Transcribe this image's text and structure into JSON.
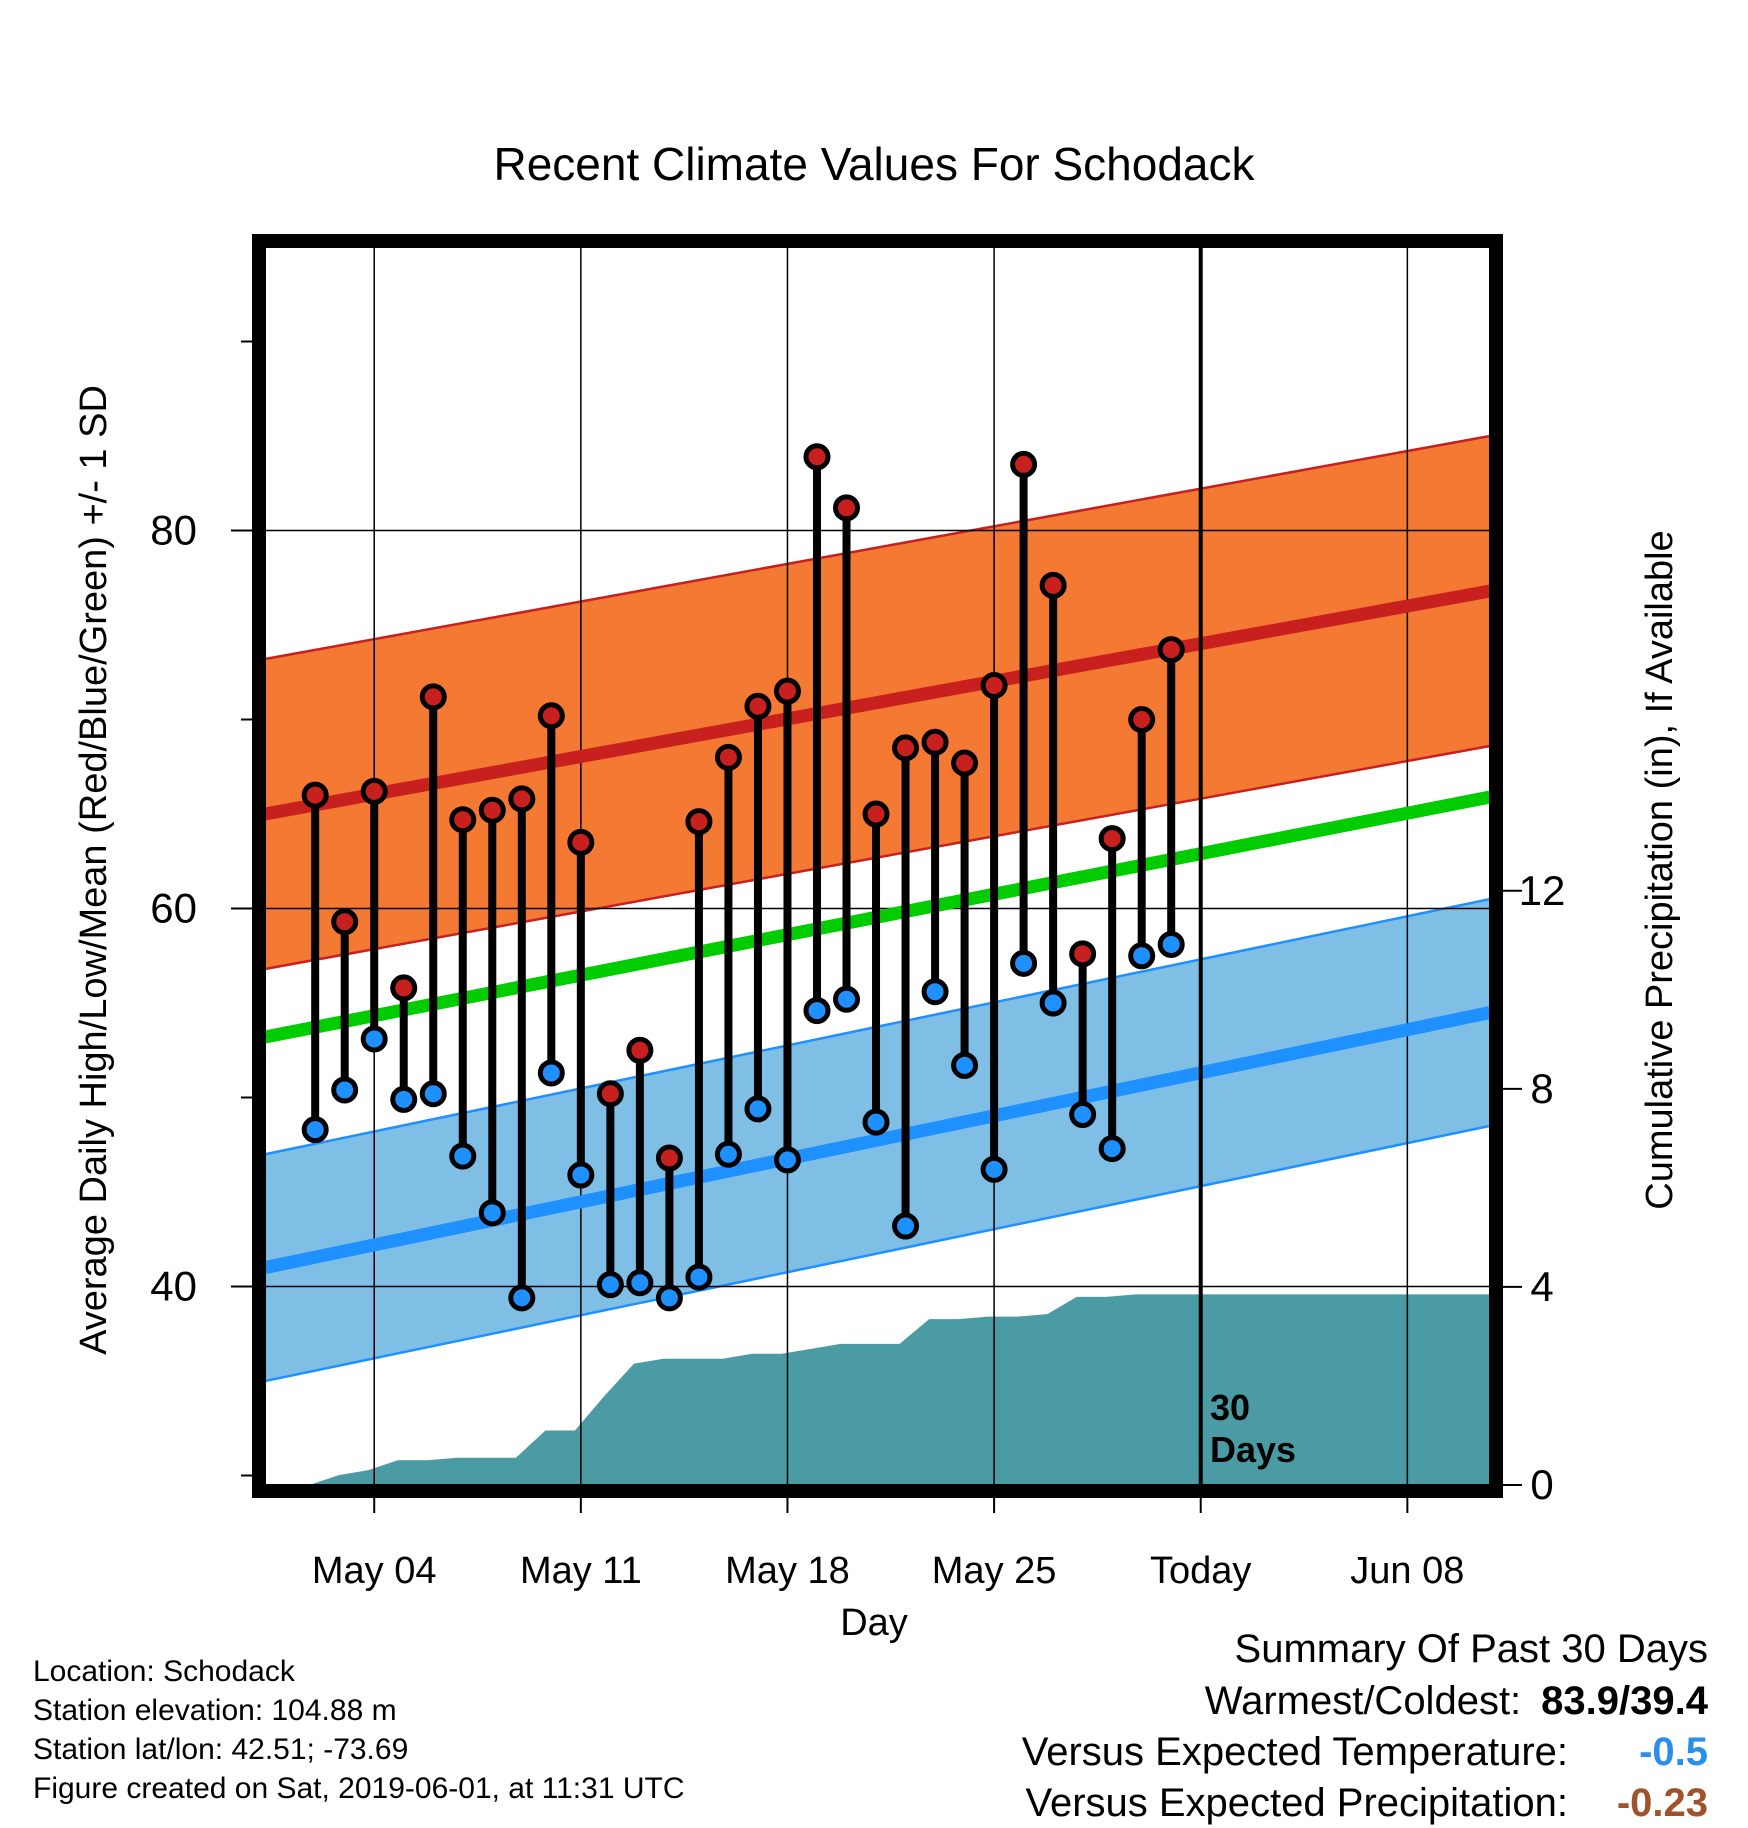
{
  "chart_data": {
    "type": "line",
    "title": "Recent Climate Values For Schodack",
    "xlabel": "Day",
    "ylabel_left": "Average Daily High/Low/Mean (Red/Blue/Green) +/- 1 SD",
    "ylabel_right": "Cumulative Precipitation (in), If Available",
    "x_tick_labels": [
      "May 04",
      "May 11",
      "May 18",
      "May 25",
      "Today",
      "Jun 08"
    ],
    "y_left_ticks": [
      "40",
      "60",
      "80"
    ],
    "y_left_range": [
      29.5,
      95
    ],
    "y_right_ticks": [
      "0",
      "4",
      "8",
      "12"
    ],
    "y_right_range": [
      0,
      25
    ],
    "x_range_days": [
      -31.7,
      9.8
    ],
    "today_marker_label": [
      "30",
      "Days"
    ],
    "dates": [
      "May 02",
      "May 03",
      "May 04",
      "May 05",
      "May 06",
      "May 07",
      "May 08",
      "May 09",
      "May 10",
      "May 11",
      "May 12",
      "May 13",
      "May 14",
      "May 15",
      "May 16",
      "May 17",
      "May 18",
      "May 19",
      "May 20",
      "May 21",
      "May 22",
      "May 23",
      "May 24",
      "May 25",
      "May 26",
      "May 27",
      "May 28",
      "May 29",
      "May 30",
      "May 31"
    ],
    "series": [
      {
        "name": "High",
        "color": "#C8201F",
        "values": [
          66.0,
          59.3,
          66.2,
          55.8,
          71.2,
          64.7,
          65.2,
          65.8,
          70.2,
          63.5,
          50.2,
          52.5,
          46.8,
          64.6,
          68.0,
          70.7,
          71.5,
          83.9,
          81.2,
          65.0,
          68.5,
          68.8,
          67.7,
          71.8,
          83.5,
          77.1,
          57.6,
          63.7,
          70.0,
          73.7
        ]
      },
      {
        "name": "Low",
        "color": "#1E90FF",
        "values": [
          48.3,
          50.4,
          53.1,
          49.9,
          50.2,
          46.9,
          43.9,
          39.4,
          51.3,
          45.9,
          40.1,
          40.2,
          39.4,
          40.5,
          47.0,
          49.4,
          46.7,
          54.6,
          55.2,
          48.7,
          43.2,
          55.6,
          51.7,
          46.2,
          57.1,
          55.0,
          49.1,
          47.3,
          57.5,
          58.1
        ]
      },
      {
        "name": "Normal High",
        "color": "#C8201F",
        "mean_start": 65.0,
        "mean_end": 76.8,
        "sd": 8.2
      },
      {
        "name": "Normal Low",
        "color": "#1E90FF",
        "mean_start": 41.0,
        "mean_end": 54.5,
        "sd": 6.0
      },
      {
        "name": "Normal Mean",
        "color": "#00CC00",
        "mean_start": 53.2,
        "mean_end": 65.9
      },
      {
        "name": "Cumulative Precipitation",
        "color": "#4A9BA3",
        "x": [
          -31.2,
          -30.2,
          -29.2,
          -28.2,
          -27.2,
          -26.2,
          -25.2,
          -24.2,
          -23.2,
          -22.2,
          -21.2,
          -20.2,
          -19.2,
          -18.2,
          -17.2,
          -16.2,
          -15.2,
          -14.2,
          -13.2,
          -12.2,
          -11.2,
          -10.2,
          -9.2,
          -8.2,
          -7.2,
          -6.2,
          -5.2,
          -4.2,
          -3.2,
          -2.2,
          -1.2,
          -0.2,
          9.8
        ],
        "values": [
          0.0,
          0.0,
          0.2,
          0.3,
          0.5,
          0.5,
          0.55,
          0.55,
          0.55,
          1.1,
          1.1,
          1.8,
          2.45,
          2.55,
          2.55,
          2.55,
          2.65,
          2.65,
          2.75,
          2.85,
          2.85,
          2.85,
          3.35,
          3.35,
          3.4,
          3.4,
          3.45,
          3.8,
          3.8,
          3.85,
          3.85,
          3.85,
          3.85
        ]
      }
    ],
    "grid": true,
    "colors": {
      "band_high": "#F47933",
      "band_low": "#7FBFE5",
      "precip": "#4A9BA3"
    }
  },
  "info": {
    "location": "Location: Schodack",
    "elevation": "Station elevation: 104.88 m",
    "latlon": "Station lat/lon: 42.51; -73.69",
    "created": "Figure created on Sat, 2019-06-01, at 11:31 UTC"
  },
  "summary": {
    "title": "Summary Of Past 30 Days",
    "warm_cold_label": "Warmest/Coldest:",
    "warm_cold_value": "83.9/39.4",
    "temp_label": "Versus Expected Temperature:",
    "temp_value": "-0.5",
    "temp_color": "#2B8EEB",
    "precip_label": "Versus Expected Precipitation:",
    "precip_value": "-0.23",
    "precip_color": "#A0522D"
  }
}
